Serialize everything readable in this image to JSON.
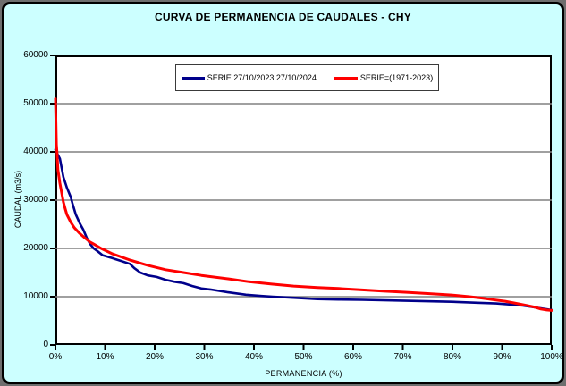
{
  "frame": {
    "background": "#CCFFFF",
    "plot_background": "#FFFFFF"
  },
  "colors": {
    "series_blue": "#00008B",
    "series_red": "#FF0000",
    "gridline": "#808080",
    "axis": "#000000",
    "title_text": "#000000"
  },
  "chart_data": {
    "type": "line",
    "title": "CURVA DE PERMANENCIA DE CAUDALES - CHY",
    "xlabel": "PERMANENCIA (%)",
    "ylabel": "CAUDAL (m3/s)",
    "xlim": [
      0,
      100
    ],
    "ylim": [
      0,
      60000
    ],
    "x_tick_values": [
      0,
      10,
      20,
      30,
      40,
      50,
      60,
      70,
      80,
      90,
      100
    ],
    "x_tick_labels": [
      "0%",
      "10%",
      "20%",
      "30%",
      "40%",
      "50%",
      "60%",
      "70%",
      "80%",
      "90%",
      "100%"
    ],
    "y_tick_values": [
      0,
      10000,
      20000,
      30000,
      40000,
      50000,
      60000
    ],
    "y_tick_labels": [
      "0",
      "10000",
      "20000",
      "30000",
      "40000",
      "50000",
      "60000"
    ],
    "grid": "horizontal",
    "legend_position": "top-center-inside",
    "series": [
      {
        "name": "SERIE 27/10/2023 27/10/2024",
        "color": "#00008B",
        "stroke_width": 2.6,
        "points": [
          [
            0,
            40500
          ],
          [
            0.4,
            39600
          ],
          [
            0.9,
            38600
          ],
          [
            1.6,
            34800
          ],
          [
            2.3,
            32600
          ],
          [
            3.1,
            30600
          ],
          [
            3.4,
            29400
          ],
          [
            4.1,
            27000
          ],
          [
            4.9,
            25200
          ],
          [
            5.6,
            23900
          ],
          [
            6.3,
            22200
          ],
          [
            7.0,
            20900
          ],
          [
            7.7,
            20000
          ],
          [
            8.5,
            19400
          ],
          [
            9.5,
            18600
          ],
          [
            11.4,
            18000
          ],
          [
            13.2,
            17400
          ],
          [
            15.0,
            16800
          ],
          [
            15.9,
            15900
          ],
          [
            17.1,
            15000
          ],
          [
            18.6,
            14400
          ],
          [
            20.4,
            14100
          ],
          [
            22.2,
            13500
          ],
          [
            24.0,
            13100
          ],
          [
            25.8,
            12800
          ],
          [
            27.6,
            12200
          ],
          [
            29.4,
            11700
          ],
          [
            31.2,
            11500
          ],
          [
            34.8,
            10900
          ],
          [
            38.4,
            10400
          ],
          [
            41.5,
            10150
          ],
          [
            43.8,
            10000
          ],
          [
            49.2,
            9700
          ],
          [
            52.8,
            9500
          ],
          [
            57.0,
            9400
          ],
          [
            61.8,
            9350
          ],
          [
            70.8,
            9150
          ],
          [
            79.8,
            8950
          ],
          [
            85.0,
            8750
          ],
          [
            88.8,
            8600
          ],
          [
            92.0,
            8350
          ],
          [
            94.2,
            8150
          ],
          [
            97.8,
            7600
          ],
          [
            100,
            7250
          ]
        ]
      },
      {
        "name": "SERIE=(1971-2023)",
        "color": "#FF0000",
        "stroke_width": 3,
        "points": [
          [
            0,
            51000
          ],
          [
            0.1,
            46000
          ],
          [
            0.2,
            41500
          ],
          [
            0.3,
            40000
          ],
          [
            0.5,
            36300
          ],
          [
            0.9,
            33500
          ],
          [
            1.3,
            31300
          ],
          [
            1.6,
            29600
          ],
          [
            2.0,
            28100
          ],
          [
            2.3,
            27000
          ],
          [
            3.1,
            25400
          ],
          [
            3.8,
            24300
          ],
          [
            4.9,
            23100
          ],
          [
            5.9,
            22200
          ],
          [
            7.0,
            21300
          ],
          [
            7.7,
            20900
          ],
          [
            9.2,
            20000
          ],
          [
            11.4,
            18900
          ],
          [
            15.0,
            17600
          ],
          [
            18.6,
            16500
          ],
          [
            22.2,
            15600
          ],
          [
            25.8,
            15000
          ],
          [
            29.4,
            14400
          ],
          [
            34.8,
            13700
          ],
          [
            39.0,
            13100
          ],
          [
            43.8,
            12600
          ],
          [
            48.0,
            12200
          ],
          [
            52.8,
            11900
          ],
          [
            57.0,
            11700
          ],
          [
            61.8,
            11400
          ],
          [
            66.0,
            11150
          ],
          [
            70.8,
            10900
          ],
          [
            75.0,
            10650
          ],
          [
            79.8,
            10350
          ],
          [
            83.4,
            10000
          ],
          [
            86.0,
            9700
          ],
          [
            88.8,
            9300
          ],
          [
            90.6,
            9050
          ],
          [
            92.4,
            8700
          ],
          [
            95.1,
            8150
          ],
          [
            96.5,
            7850
          ],
          [
            97.8,
            7450
          ],
          [
            99.0,
            7250
          ],
          [
            100,
            7150
          ]
        ]
      }
    ]
  }
}
